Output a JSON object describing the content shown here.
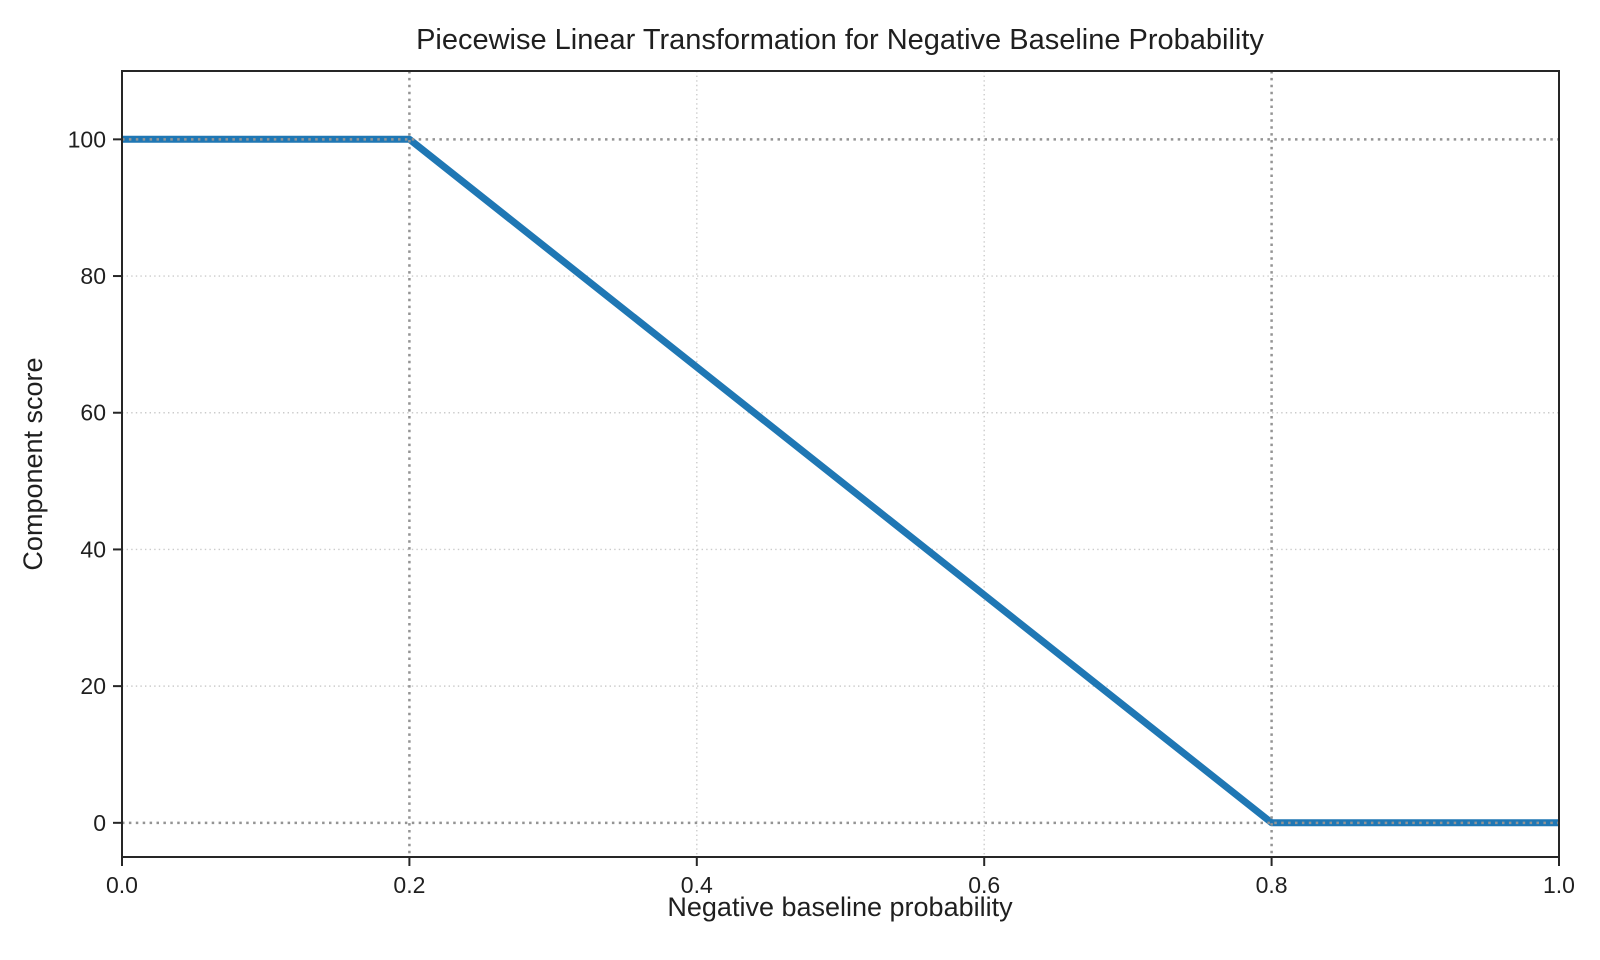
{
  "figure": {
    "background": "#ffffff"
  },
  "colors": {
    "text": "#1f1f1f",
    "spine": "#262626",
    "tick_mark": "#262626"
  },
  "chart_data": {
    "type": "line",
    "title": "Piecewise Linear Transformation for Negative Baseline Probability",
    "xlabel": "Negative baseline probability",
    "ylabel": "Component score",
    "xlim": [
      0.0,
      1.0
    ],
    "ylim": [
      -5,
      110
    ],
    "x_ticks": [
      {
        "v": 0.0,
        "label": "0.0"
      },
      {
        "v": 0.2,
        "label": "0.2"
      },
      {
        "v": 0.4,
        "label": "0.4"
      },
      {
        "v": 0.6,
        "label": "0.6"
      },
      {
        "v": 0.8,
        "label": "0.8"
      },
      {
        "v": 1.0,
        "label": "1.0"
      }
    ],
    "y_ticks": [
      {
        "v": 0,
        "label": "0"
      },
      {
        "v": 20,
        "label": "20"
      },
      {
        "v": 40,
        "label": "40"
      },
      {
        "v": 60,
        "label": "60"
      },
      {
        "v": 80,
        "label": "80"
      },
      {
        "v": 100,
        "label": "100"
      }
    ],
    "grid": {
      "on": true,
      "style": "dotted",
      "color": "#cbcbcb",
      "x_values": [
        0.4,
        0.6
      ],
      "y_values": [
        20,
        40,
        60,
        80
      ]
    },
    "reference_lines": {
      "style": "dotted",
      "color": "#949494",
      "x_values": [
        0.2,
        0.8
      ],
      "y_values": [
        0,
        100
      ]
    },
    "series": [
      {
        "name": "component-score-curve",
        "color": "#1f77b4",
        "linewidth": 7,
        "points": [
          [
            0.0,
            100
          ],
          [
            0.2,
            100
          ],
          [
            0.8,
            0
          ],
          [
            1.0,
            0
          ]
        ]
      }
    ]
  }
}
